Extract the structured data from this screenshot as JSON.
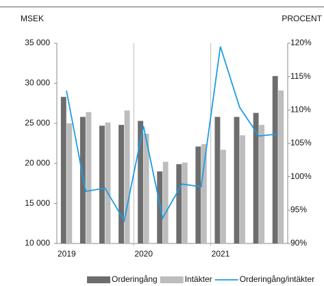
{
  "chart_data": {
    "type": "bar",
    "y_axis_label": "MSEK",
    "y2_axis_label": "PROCENT",
    "categories": [
      "2019",
      null,
      null,
      null,
      "2020",
      null,
      null,
      null,
      "2021",
      null,
      null,
      null
    ],
    "series": [
      {
        "name": "Orderingång",
        "color": "#6d6d6d",
        "type": "bar",
        "values": [
          28300,
          25800,
          24700,
          24800,
          25300,
          19000,
          19900,
          22100,
          25800,
          25800,
          26300,
          30900
        ]
      },
      {
        "name": "Intäkter",
        "color": "#bdbdbd",
        "type": "bar",
        "values": [
          25000,
          26400,
          25100,
          26600,
          23700,
          20200,
          20100,
          22400,
          21700,
          23500,
          24800,
          29100
        ]
      },
      {
        "name": "Orderingång/intäkter",
        "color": "#1e9be2",
        "type": "line",
        "axis": "y2",
        "values": [
          112.9,
          97.8,
          98.3,
          93.4,
          107.6,
          93.8,
          98.9,
          98.5,
          119.5,
          110.4,
          106.1,
          106.4
        ]
      }
    ],
    "ylim": [
      10000,
      35000
    ],
    "yticks": [
      {
        "value": 10000,
        "label": "10 000"
      },
      {
        "value": 15000,
        "label": "15 000"
      },
      {
        "value": 20000,
        "label": "20 000"
      },
      {
        "value": 25000,
        "label": "25 000"
      },
      {
        "value": 30000,
        "label": "30 000"
      },
      {
        "value": 35000,
        "label": "35 000"
      }
    ],
    "y2lim": [
      90,
      120
    ],
    "y2ticks": [
      {
        "value": 90,
        "label": "90%"
      },
      {
        "value": 95,
        "label": "95%"
      },
      {
        "value": 100,
        "label": "100%"
      },
      {
        "value": 105,
        "label": "105%"
      },
      {
        "value": 110,
        "label": "110%"
      },
      {
        "value": 115,
        "label": "115%"
      },
      {
        "value": 120,
        "label": "120%"
      }
    ],
    "grid": false,
    "legend": "bottom"
  }
}
